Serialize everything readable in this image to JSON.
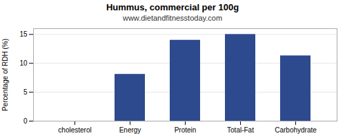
{
  "chart_data": {
    "type": "bar",
    "title": "Hummus, commercial per 100g",
    "subtitle": "www.dietandfitnesstoday.com",
    "categories": [
      "cholesterol",
      "Energy",
      "Protein",
      "Total-Fat",
      "Carbohydrate"
    ],
    "values": [
      0,
      8.1,
      14.0,
      15.0,
      11.3
    ],
    "color": "#2e4a8e",
    "ylabel": "Percentage of RDH (%)",
    "ylim": [
      0,
      16
    ],
    "yticks": [
      0,
      5,
      10,
      15
    ],
    "grid": true
  }
}
